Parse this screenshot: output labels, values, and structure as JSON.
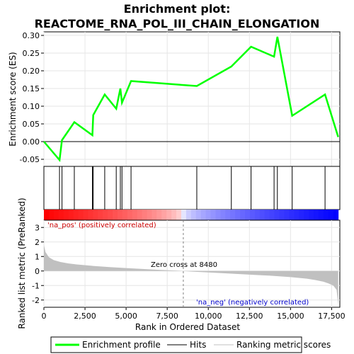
{
  "title_line1": "Enrichment plot:",
  "title_line2": "REACTOME_RNA_POL_III_CHAIN_ELONGATION",
  "colors": {
    "profile": "#00ff00",
    "hits": "#000000",
    "metric_fill": "#c0c0c0",
    "pos_text": "#cc0000",
    "neg_text": "#0000cc",
    "zero_line": "#808080"
  },
  "chart_data": {
    "type": "line",
    "panels": {
      "es": {
        "ylabel": "Enrichment score (ES)",
        "ylim": [
          -0.07,
          0.31
        ],
        "yticks": [
          -0.05,
          0.0,
          0.05,
          0.1,
          0.15,
          0.2,
          0.25,
          0.3
        ],
        "ytick_labels": [
          "-0.05",
          "0.00",
          "0.05",
          "0.10",
          "0.15",
          "0.20",
          "0.25",
          "0.30"
        ]
      },
      "metric": {
        "ylabel": "Ranked list metric (PreRanked)",
        "ylim": [
          -2.5,
          3.5
        ],
        "yticks": [
          -2,
          -1,
          0,
          1,
          2,
          3
        ],
        "ytick_labels": [
          "-2",
          "-1",
          "0",
          "1",
          "2",
          "3"
        ]
      }
    },
    "xlabel": "Rank in Ordered Dataset",
    "xlim": [
      0,
      18000
    ],
    "xticks": [
      0,
      2500,
      5000,
      7500,
      10000,
      12500,
      15000,
      17500
    ],
    "xtick_labels": [
      "0",
      "2,500",
      "5,000",
      "7,500",
      "10,000",
      "12,500",
      "15,000",
      "17,500"
    ],
    "n_genes": 17900,
    "hits": [
      950,
      1100,
      1850,
      2950,
      3000,
      3700,
      4400,
      4650,
      4750,
      5300,
      9300,
      11400,
      12600,
      14000,
      14200,
      15100,
      17100
    ],
    "es_profile": {
      "x": [
        0,
        950,
        950,
        1100,
        1100,
        1850,
        1850,
        2950,
        2950,
        3000,
        3000,
        3700,
        3700,
        4400,
        4400,
        4650,
        4650,
        4750,
        4750,
        5300,
        5300,
        9300,
        9300,
        11400,
        11400,
        12600,
        12600,
        14000,
        14000,
        14200,
        14200,
        15100,
        15100,
        17100,
        17100,
        17900
      ],
      "y": [
        0.0,
        -0.052,
        -0.052,
        0.004,
        0.004,
        0.055,
        0.055,
        0.018,
        0.018,
        0.075,
        0.075,
        0.133,
        0.133,
        0.093,
        0.093,
        0.15,
        0.15,
        0.11,
        0.11,
        0.171,
        0.171,
        0.157,
        0.157,
        0.212,
        0.212,
        0.268,
        0.268,
        0.24,
        0.24,
        0.296,
        0.296,
        0.073,
        0.073,
        0.133,
        0.133,
        0.013
      ]
    },
    "metric_profile": {
      "x": [
        0,
        100,
        300,
        600,
        1000,
        1500,
        2000,
        3000,
        4000,
        5000,
        6000,
        7000,
        8000,
        8480,
        9000,
        10000,
        11000,
        12000,
        13000,
        14000,
        15000,
        16000,
        16500,
        17000,
        17300,
        17600,
        17800,
        17900
      ],
      "y": [
        1.8,
        1.3,
        0.95,
        0.75,
        0.62,
        0.52,
        0.45,
        0.35,
        0.27,
        0.2,
        0.14,
        0.08,
        0.03,
        0.0,
        -0.04,
        -0.1,
        -0.16,
        -0.22,
        -0.28,
        -0.34,
        -0.42,
        -0.53,
        -0.62,
        -0.74,
        -0.85,
        -1.0,
        -1.3,
        -2.35
      ]
    },
    "zero_cross_label": "Zero cross at 8480",
    "zero_cross": 8480,
    "pos_label": "'na_pos' (positively correlated)",
    "neg_label": "'na_neg' (negatively correlated)",
    "legend": [
      "Enrichment profile",
      "Hits",
      "Ranking metric scores"
    ]
  }
}
